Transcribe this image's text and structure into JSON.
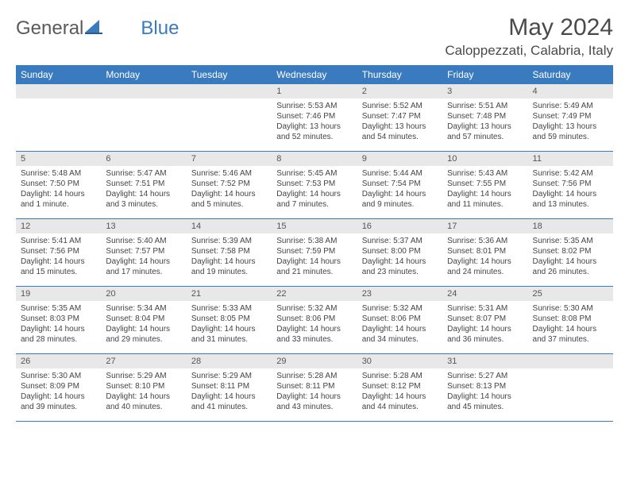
{
  "logo": {
    "part1": "General",
    "part2": "Blue"
  },
  "title": "May 2024",
  "location": "Caloppezzati, Calabria, Italy",
  "header_bg": "#3a7bbf",
  "day_names": [
    "Sunday",
    "Monday",
    "Tuesday",
    "Wednesday",
    "Thursday",
    "Friday",
    "Saturday"
  ],
  "weeks": [
    [
      {
        "n": "",
        "s": "",
        "ss": "",
        "d": ""
      },
      {
        "n": "",
        "s": "",
        "ss": "",
        "d": ""
      },
      {
        "n": "",
        "s": "",
        "ss": "",
        "d": ""
      },
      {
        "n": "1",
        "s": "Sunrise: 5:53 AM",
        "ss": "Sunset: 7:46 PM",
        "d": "Daylight: 13 hours and 52 minutes."
      },
      {
        "n": "2",
        "s": "Sunrise: 5:52 AM",
        "ss": "Sunset: 7:47 PM",
        "d": "Daylight: 13 hours and 54 minutes."
      },
      {
        "n": "3",
        "s": "Sunrise: 5:51 AM",
        "ss": "Sunset: 7:48 PM",
        "d": "Daylight: 13 hours and 57 minutes."
      },
      {
        "n": "4",
        "s": "Sunrise: 5:49 AM",
        "ss": "Sunset: 7:49 PM",
        "d": "Daylight: 13 hours and 59 minutes."
      }
    ],
    [
      {
        "n": "5",
        "s": "Sunrise: 5:48 AM",
        "ss": "Sunset: 7:50 PM",
        "d": "Daylight: 14 hours and 1 minute."
      },
      {
        "n": "6",
        "s": "Sunrise: 5:47 AM",
        "ss": "Sunset: 7:51 PM",
        "d": "Daylight: 14 hours and 3 minutes."
      },
      {
        "n": "7",
        "s": "Sunrise: 5:46 AM",
        "ss": "Sunset: 7:52 PM",
        "d": "Daylight: 14 hours and 5 minutes."
      },
      {
        "n": "8",
        "s": "Sunrise: 5:45 AM",
        "ss": "Sunset: 7:53 PM",
        "d": "Daylight: 14 hours and 7 minutes."
      },
      {
        "n": "9",
        "s": "Sunrise: 5:44 AM",
        "ss": "Sunset: 7:54 PM",
        "d": "Daylight: 14 hours and 9 minutes."
      },
      {
        "n": "10",
        "s": "Sunrise: 5:43 AM",
        "ss": "Sunset: 7:55 PM",
        "d": "Daylight: 14 hours and 11 minutes."
      },
      {
        "n": "11",
        "s": "Sunrise: 5:42 AM",
        "ss": "Sunset: 7:56 PM",
        "d": "Daylight: 14 hours and 13 minutes."
      }
    ],
    [
      {
        "n": "12",
        "s": "Sunrise: 5:41 AM",
        "ss": "Sunset: 7:56 PM",
        "d": "Daylight: 14 hours and 15 minutes."
      },
      {
        "n": "13",
        "s": "Sunrise: 5:40 AM",
        "ss": "Sunset: 7:57 PM",
        "d": "Daylight: 14 hours and 17 minutes."
      },
      {
        "n": "14",
        "s": "Sunrise: 5:39 AM",
        "ss": "Sunset: 7:58 PM",
        "d": "Daylight: 14 hours and 19 minutes."
      },
      {
        "n": "15",
        "s": "Sunrise: 5:38 AM",
        "ss": "Sunset: 7:59 PM",
        "d": "Daylight: 14 hours and 21 minutes."
      },
      {
        "n": "16",
        "s": "Sunrise: 5:37 AM",
        "ss": "Sunset: 8:00 PM",
        "d": "Daylight: 14 hours and 23 minutes."
      },
      {
        "n": "17",
        "s": "Sunrise: 5:36 AM",
        "ss": "Sunset: 8:01 PM",
        "d": "Daylight: 14 hours and 24 minutes."
      },
      {
        "n": "18",
        "s": "Sunrise: 5:35 AM",
        "ss": "Sunset: 8:02 PM",
        "d": "Daylight: 14 hours and 26 minutes."
      }
    ],
    [
      {
        "n": "19",
        "s": "Sunrise: 5:35 AM",
        "ss": "Sunset: 8:03 PM",
        "d": "Daylight: 14 hours and 28 minutes."
      },
      {
        "n": "20",
        "s": "Sunrise: 5:34 AM",
        "ss": "Sunset: 8:04 PM",
        "d": "Daylight: 14 hours and 29 minutes."
      },
      {
        "n": "21",
        "s": "Sunrise: 5:33 AM",
        "ss": "Sunset: 8:05 PM",
        "d": "Daylight: 14 hours and 31 minutes."
      },
      {
        "n": "22",
        "s": "Sunrise: 5:32 AM",
        "ss": "Sunset: 8:06 PM",
        "d": "Daylight: 14 hours and 33 minutes."
      },
      {
        "n": "23",
        "s": "Sunrise: 5:32 AM",
        "ss": "Sunset: 8:06 PM",
        "d": "Daylight: 14 hours and 34 minutes."
      },
      {
        "n": "24",
        "s": "Sunrise: 5:31 AM",
        "ss": "Sunset: 8:07 PM",
        "d": "Daylight: 14 hours and 36 minutes."
      },
      {
        "n": "25",
        "s": "Sunrise: 5:30 AM",
        "ss": "Sunset: 8:08 PM",
        "d": "Daylight: 14 hours and 37 minutes."
      }
    ],
    [
      {
        "n": "26",
        "s": "Sunrise: 5:30 AM",
        "ss": "Sunset: 8:09 PM",
        "d": "Daylight: 14 hours and 39 minutes."
      },
      {
        "n": "27",
        "s": "Sunrise: 5:29 AM",
        "ss": "Sunset: 8:10 PM",
        "d": "Daylight: 14 hours and 40 minutes."
      },
      {
        "n": "28",
        "s": "Sunrise: 5:29 AM",
        "ss": "Sunset: 8:11 PM",
        "d": "Daylight: 14 hours and 41 minutes."
      },
      {
        "n": "29",
        "s": "Sunrise: 5:28 AM",
        "ss": "Sunset: 8:11 PM",
        "d": "Daylight: 14 hours and 43 minutes."
      },
      {
        "n": "30",
        "s": "Sunrise: 5:28 AM",
        "ss": "Sunset: 8:12 PM",
        "d": "Daylight: 14 hours and 44 minutes."
      },
      {
        "n": "31",
        "s": "Sunrise: 5:27 AM",
        "ss": "Sunset: 8:13 PM",
        "d": "Daylight: 14 hours and 45 minutes."
      },
      {
        "n": "",
        "s": "",
        "ss": "",
        "d": ""
      }
    ]
  ]
}
